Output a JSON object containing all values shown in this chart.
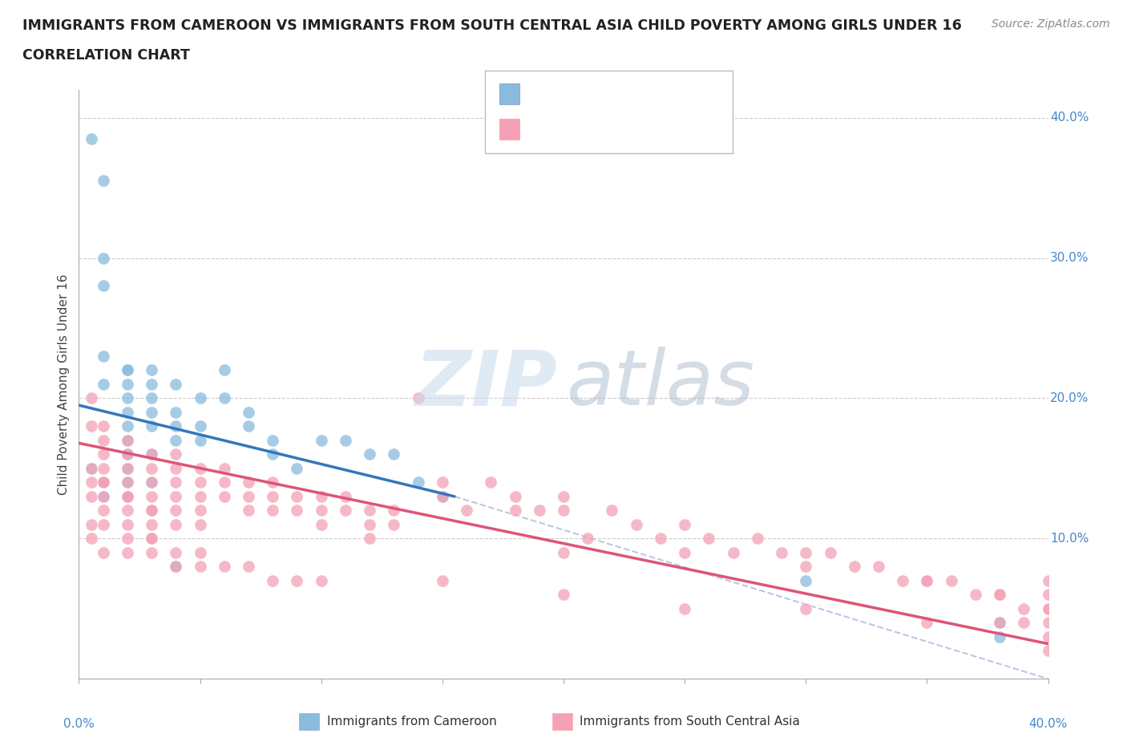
{
  "title_line1": "IMMIGRANTS FROM CAMEROON VS IMMIGRANTS FROM SOUTH CENTRAL ASIA CHILD POVERTY AMONG GIRLS UNDER 16",
  "title_line2": "CORRELATION CHART",
  "source_text": "Source: ZipAtlas.com",
  "ylabel": "Child Poverty Among Girls Under 16",
  "xlim": [
    0.0,
    0.4
  ],
  "ylim": [
    0.0,
    0.42
  ],
  "grid_color": "#cccccc",
  "color_blue": "#88bbdd",
  "color_pink": "#f4a0b5",
  "color_blue_line": "#3377bb",
  "color_pink_line": "#dd5577",
  "color_dashed": "#aabbdd",
  "watermark_zip": "ZIP",
  "watermark_atlas": "atlas",
  "watermark_color_zip": "#c8d8ee",
  "watermark_color_atlas": "#aabbcc",
  "legend_color": "#2255cc",
  "cam_line_x0": 0.0,
  "cam_line_x1": 0.155,
  "cam_line_y0": 0.195,
  "cam_line_y1": 0.13,
  "sca_line_x0": 0.0,
  "sca_line_x1": 0.4,
  "sca_line_y0": 0.168,
  "sca_line_y1": 0.025,
  "dash_line_x0": 0.155,
  "dash_line_x1": 0.4,
  "dash_line_y0": 0.13,
  "dash_line_y1": 0.0,
  "cam_x": [
    0.005,
    0.01,
    0.01,
    0.01,
    0.01,
    0.01,
    0.02,
    0.02,
    0.02,
    0.02,
    0.02,
    0.02,
    0.02,
    0.02,
    0.02,
    0.03,
    0.03,
    0.03,
    0.03,
    0.03,
    0.04,
    0.04,
    0.04,
    0.04,
    0.05,
    0.05,
    0.05,
    0.06,
    0.06,
    0.07,
    0.07,
    0.08,
    0.08,
    0.09,
    0.1,
    0.11,
    0.12,
    0.13,
    0.14,
    0.15,
    0.005,
    0.01,
    0.01,
    0.02,
    0.02,
    0.03,
    0.03,
    0.04,
    0.3,
    0.38,
    0.38
  ],
  "cam_y": [
    0.385,
    0.355,
    0.3,
    0.28,
    0.23,
    0.21,
    0.22,
    0.21,
    0.2,
    0.19,
    0.18,
    0.17,
    0.16,
    0.15,
    0.22,
    0.21,
    0.2,
    0.19,
    0.18,
    0.22,
    0.19,
    0.18,
    0.17,
    0.21,
    0.2,
    0.18,
    0.17,
    0.2,
    0.22,
    0.19,
    0.18,
    0.16,
    0.17,
    0.15,
    0.17,
    0.17,
    0.16,
    0.16,
    0.14,
    0.13,
    0.15,
    0.14,
    0.13,
    0.14,
    0.13,
    0.16,
    0.14,
    0.08,
    0.07,
    0.04,
    0.03
  ],
  "sca_x": [
    0.005,
    0.005,
    0.005,
    0.005,
    0.01,
    0.01,
    0.01,
    0.01,
    0.01,
    0.01,
    0.01,
    0.02,
    0.02,
    0.02,
    0.02,
    0.02,
    0.02,
    0.02,
    0.03,
    0.03,
    0.03,
    0.03,
    0.03,
    0.03,
    0.03,
    0.04,
    0.04,
    0.04,
    0.04,
    0.04,
    0.05,
    0.05,
    0.05,
    0.05,
    0.05,
    0.06,
    0.06,
    0.06,
    0.07,
    0.07,
    0.07,
    0.08,
    0.08,
    0.08,
    0.09,
    0.09,
    0.1,
    0.1,
    0.1,
    0.11,
    0.11,
    0.12,
    0.12,
    0.13,
    0.13,
    0.14,
    0.15,
    0.15,
    0.16,
    0.17,
    0.18,
    0.18,
    0.19,
    0.2,
    0.2,
    0.21,
    0.22,
    0.23,
    0.24,
    0.25,
    0.26,
    0.27,
    0.28,
    0.29,
    0.3,
    0.31,
    0.32,
    0.33,
    0.34,
    0.35,
    0.36,
    0.37,
    0.38,
    0.39,
    0.4,
    0.4,
    0.4,
    0.005,
    0.01,
    0.02,
    0.03,
    0.04,
    0.12,
    0.2,
    0.25,
    0.3,
    0.35,
    0.38,
    0.4,
    0.4,
    0.005,
    0.01,
    0.02,
    0.03,
    0.04,
    0.05,
    0.06,
    0.07,
    0.08,
    0.09,
    0.1,
    0.15,
    0.2,
    0.25,
    0.3,
    0.35,
    0.38,
    0.39,
    0.4,
    0.4,
    0.005,
    0.01,
    0.02,
    0.03,
    0.04,
    0.05
  ],
  "sca_y": [
    0.2,
    0.18,
    0.15,
    0.13,
    0.18,
    0.17,
    0.16,
    0.15,
    0.14,
    0.13,
    0.12,
    0.17,
    0.16,
    0.15,
    0.14,
    0.13,
    0.12,
    0.11,
    0.16,
    0.15,
    0.14,
    0.13,
    0.12,
    0.11,
    0.1,
    0.16,
    0.15,
    0.14,
    0.13,
    0.12,
    0.15,
    0.14,
    0.13,
    0.12,
    0.11,
    0.15,
    0.14,
    0.13,
    0.14,
    0.13,
    0.12,
    0.14,
    0.13,
    0.12,
    0.13,
    0.12,
    0.13,
    0.12,
    0.11,
    0.13,
    0.12,
    0.12,
    0.11,
    0.12,
    0.11,
    0.2,
    0.14,
    0.13,
    0.12,
    0.14,
    0.13,
    0.12,
    0.12,
    0.13,
    0.12,
    0.1,
    0.12,
    0.11,
    0.1,
    0.11,
    0.1,
    0.09,
    0.1,
    0.09,
    0.09,
    0.09,
    0.08,
    0.08,
    0.07,
    0.07,
    0.07,
    0.06,
    0.06,
    0.05,
    0.06,
    0.05,
    0.04,
    0.14,
    0.14,
    0.13,
    0.12,
    0.11,
    0.1,
    0.09,
    0.09,
    0.08,
    0.07,
    0.06,
    0.07,
    0.05,
    0.1,
    0.09,
    0.09,
    0.09,
    0.08,
    0.08,
    0.08,
    0.08,
    0.07,
    0.07,
    0.07,
    0.07,
    0.06,
    0.05,
    0.05,
    0.04,
    0.04,
    0.04,
    0.03,
    0.02,
    0.11,
    0.11,
    0.1,
    0.1,
    0.09,
    0.09
  ]
}
